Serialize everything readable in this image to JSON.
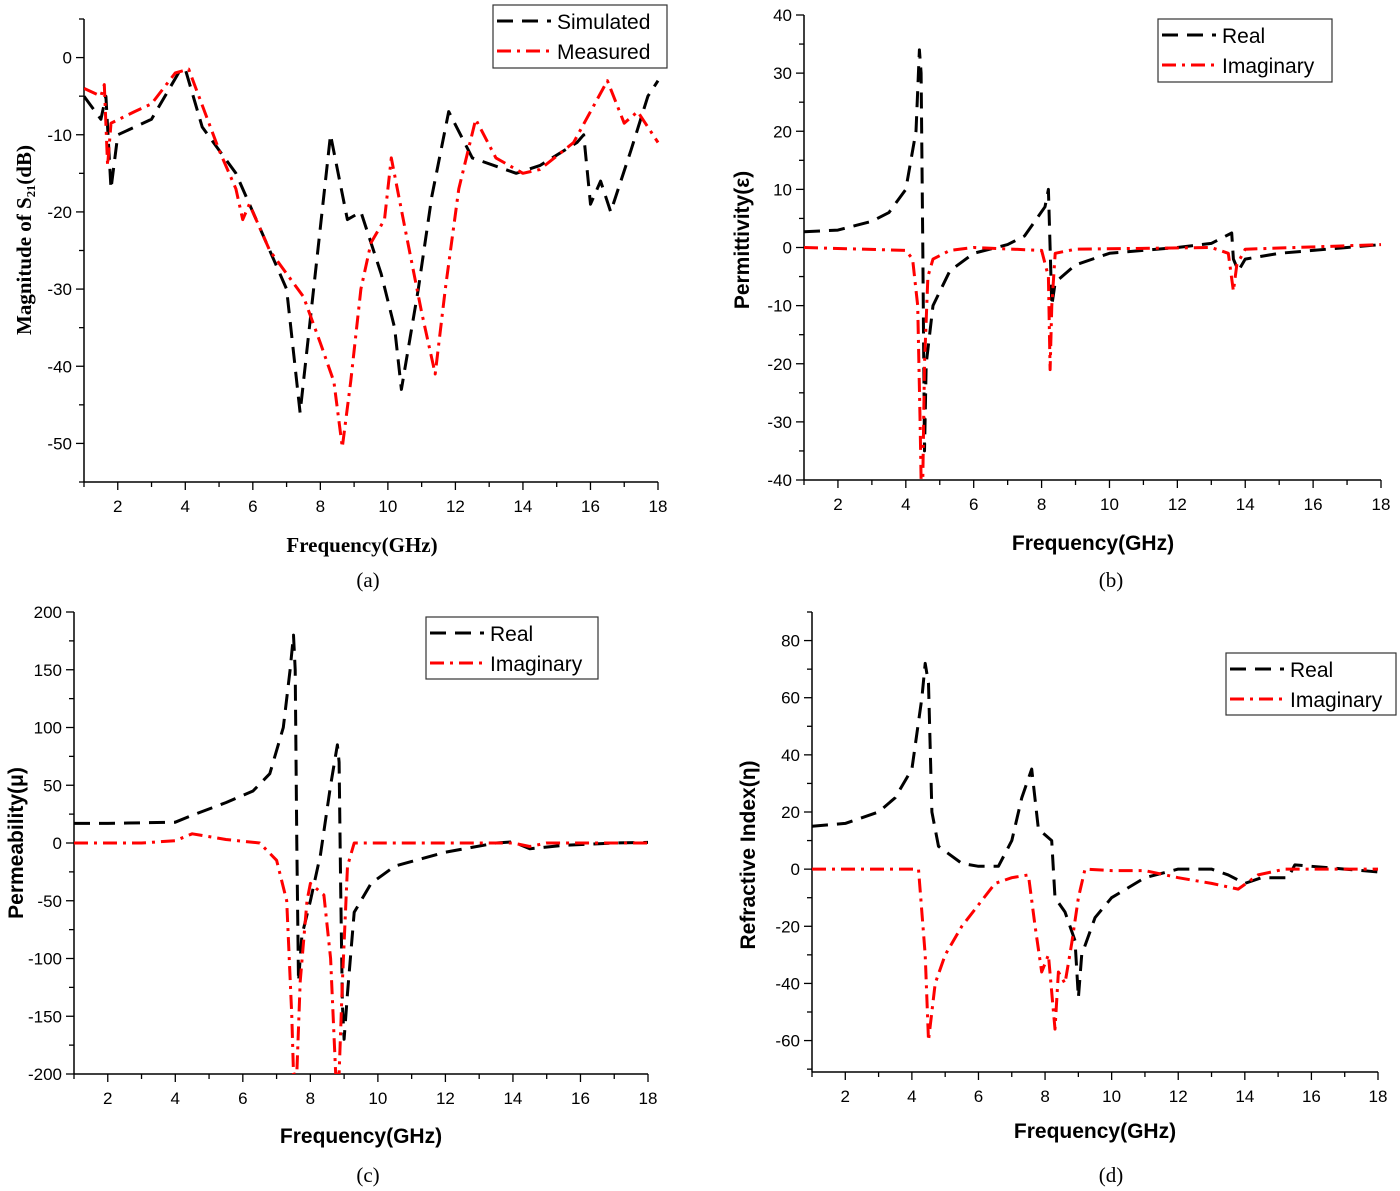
{
  "colors": {
    "series1": "#000000",
    "series2": "#ff0000"
  },
  "chart_data": [
    {
      "type": "line",
      "caption": "(a)",
      "xlabel": "Frequency(GHz)",
      "ylabel": "Magnitude of S₂₁(dB)",
      "xlim": [
        1,
        18
      ],
      "ylim": [
        -55,
        5
      ],
      "xticks": [
        2,
        4,
        6,
        8,
        10,
        12,
        14,
        16,
        18
      ],
      "yticks": [
        0,
        -10,
        -20,
        -30,
        -40,
        -50
      ],
      "grid": false,
      "legend": "top-right",
      "series": [
        {
          "name": "Simulated",
          "style": "dashed",
          "color": "#000000",
          "x": [
            1,
            1.5,
            1.65,
            1.8,
            2,
            3,
            3.8,
            4,
            4.5,
            5.5,
            6.2,
            7,
            7.4,
            7.8,
            8.3,
            8.8,
            9.2,
            9.8,
            10.2,
            10.4,
            10.9,
            11.3,
            11.8,
            12.5,
            13.8,
            14.5,
            15.6,
            15.8,
            16,
            16.3,
            16.6,
            17.2,
            17.7,
            18
          ],
          "y": [
            -5,
            -8,
            -5,
            -17,
            -10,
            -8,
            -2,
            -1.5,
            -9,
            -15,
            -22,
            -30,
            -46,
            -30,
            -10,
            -21,
            -20,
            -28,
            -35,
            -43,
            -30,
            -18,
            -7,
            -13,
            -15,
            -14,
            -11,
            -10,
            -19,
            -16,
            -20,
            -12,
            -5,
            -3
          ]
        },
        {
          "name": "Measured",
          "style": "dashdot",
          "color": "#ff0000",
          "x": [
            1,
            1.5,
            1.6,
            1.7,
            1.8,
            2.5,
            3,
            3.7,
            4.1,
            5,
            5.5,
            5.7,
            5.9,
            6.5,
            7.5,
            8,
            8.4,
            8.65,
            8.9,
            9.2,
            9.5,
            9.9,
            10.1,
            10.5,
            11,
            11.4,
            11.7,
            12.1,
            12.6,
            13.2,
            14,
            14.5,
            15.5,
            16.5,
            17,
            17.4,
            18
          ],
          "y": [
            -4,
            -5,
            -3.5,
            -14,
            -8.5,
            -7,
            -6,
            -2,
            -1.5,
            -12,
            -17,
            -21,
            -19,
            -25,
            -31,
            -37,
            -42,
            -50.5,
            -42,
            -30,
            -24,
            -21,
            -13,
            -22,
            -33,
            -41,
            -30,
            -17,
            -8,
            -13,
            -15,
            -14.5,
            -11,
            -3,
            -8.5,
            -7,
            -11
          ]
        }
      ]
    },
    {
      "type": "line",
      "caption": "(b)",
      "xlabel": "Frequency(GHz)",
      "ylabel": "Permittivity(ε)",
      "xlim": [
        1,
        18
      ],
      "ylim": [
        -40,
        40
      ],
      "xticks": [
        2,
        4,
        6,
        8,
        10,
        12,
        14,
        16,
        18
      ],
      "yticks": [
        40,
        30,
        20,
        10,
        0,
        -10,
        -20,
        -30,
        -40
      ],
      "grid": false,
      "legend": "top-right",
      "series": [
        {
          "name": "Real",
          "style": "dashed",
          "color": "#000000",
          "x": [
            1,
            2,
            3,
            3.5,
            4,
            4.3,
            4.4,
            4.45,
            4.5,
            4.55,
            4.6,
            4.8,
            5.3,
            6,
            7,
            7.5,
            8.1,
            8.2,
            8.3,
            8.4,
            9,
            10,
            11,
            12,
            13,
            13.6,
            13.65,
            13.8,
            14,
            15,
            16,
            17,
            18
          ],
          "y": [
            2.7,
            3,
            4.5,
            6,
            10,
            20,
            34,
            30,
            0,
            -35,
            -20,
            -10,
            -4,
            -1,
            0.5,
            2,
            7,
            10,
            -10,
            -6,
            -3,
            -1,
            -0.5,
            0,
            0.7,
            2.5,
            -2,
            -4,
            -2,
            -1,
            -0.5,
            0,
            0.5
          ]
        },
        {
          "name": "Imaginary",
          "style": "dashdot",
          "color": "#ff0000",
          "x": [
            1,
            4,
            4.2,
            4.35,
            4.42,
            4.45,
            4.5,
            4.55,
            4.65,
            4.8,
            5.3,
            6,
            8,
            8.2,
            8.25,
            8.3,
            8.4,
            9,
            13,
            13.5,
            13.65,
            13.75,
            14,
            18
          ],
          "y": [
            0,
            -0.5,
            -2,
            -10,
            -30,
            -40,
            -40,
            -20,
            -5,
            -2,
            -0.5,
            0,
            -0.5,
            -5,
            -21,
            -10,
            -1,
            -0.3,
            0,
            -1,
            -7.5,
            -3,
            -0.3,
            0.5
          ]
        }
      ]
    },
    {
      "type": "line",
      "caption": "(c)",
      "xlabel": "Frequency(GHz)",
      "ylabel": "Permeability(μ)",
      "xlim": [
        1,
        18
      ],
      "ylim": [
        -200,
        200
      ],
      "xticks": [
        2,
        4,
        6,
        8,
        10,
        12,
        14,
        16,
        18
      ],
      "yticks": [
        200,
        150,
        100,
        50,
        0,
        -50,
        -100,
        -150,
        -200
      ],
      "grid": false,
      "legend": "top-right",
      "series": [
        {
          "name": "Real",
          "style": "dashed",
          "color": "#000000",
          "x": [
            1,
            2,
            3,
            4,
            4.5,
            5.5,
            6.3,
            6.8,
            7.2,
            7.4,
            7.5,
            7.55,
            7.6,
            7.65,
            7.75,
            8,
            8.3,
            8.6,
            8.8,
            8.85,
            8.9,
            8.95,
            9,
            9.1,
            9.3,
            9.8,
            10.5,
            12,
            13.5,
            14,
            14.5,
            15.5,
            17,
            18
          ],
          "y": [
            17,
            17,
            17.5,
            18,
            24,
            35,
            45,
            60,
            100,
            150,
            180,
            150,
            0,
            -120,
            -80,
            -50,
            -10,
            50,
            85,
            70,
            -40,
            -140,
            -170,
            -130,
            -60,
            -35,
            -20,
            -8,
            0,
            1,
            -5,
            -2,
            0,
            0.5
          ]
        },
        {
          "name": "Imaginary",
          "style": "dashdot",
          "color": "#ff0000",
          "x": [
            1,
            3,
            4,
            4.5,
            5.5,
            6.5,
            7,
            7.3,
            7.45,
            7.5,
            7.6,
            7.7,
            7.9,
            8,
            8.4,
            8.6,
            8.75,
            8.85,
            8.95,
            9.1,
            9.3,
            14,
            14.5,
            15,
            18
          ],
          "y": [
            0,
            0,
            2,
            8,
            3,
            0,
            -15,
            -50,
            -150,
            -200,
            -200,
            -120,
            -50,
            -35,
            -45,
            -100,
            -200,
            -200,
            -120,
            -20,
            0,
            0,
            -3,
            0,
            0
          ]
        }
      ]
    },
    {
      "type": "line",
      "caption": "(d)",
      "xlabel": "Frequency(GHz)",
      "ylabel": "Refractive Index(η)",
      "xlim": [
        1,
        18
      ],
      "ylim": [
        -71,
        90
      ],
      "xticks": [
        2,
        4,
        6,
        8,
        10,
        12,
        14,
        16,
        18
      ],
      "yticks": [
        80,
        60,
        40,
        20,
        0,
        -20,
        -40,
        -60
      ],
      "grid": false,
      "legend": "top-right",
      "series": [
        {
          "name": "Real",
          "style": "dashed",
          "color": "#000000",
          "x": [
            1,
            2,
            3,
            3.5,
            4,
            4.3,
            4.4,
            4.5,
            4.6,
            4.8,
            5.5,
            6,
            6.6,
            7,
            7.3,
            7.6,
            7.8,
            8,
            8.2,
            8.3,
            8.6,
            8.9,
            9,
            9.1,
            9.5,
            10,
            11,
            12,
            13,
            13.5,
            14,
            14.5,
            15.3,
            15.5,
            16,
            17,
            18
          ],
          "y": [
            15,
            16,
            20,
            25,
            35,
            60,
            72,
            65,
            20,
            8,
            2,
            1,
            1,
            10,
            25,
            35,
            14,
            12,
            10,
            -10,
            -15,
            -25,
            -45,
            -30,
            -17,
            -10,
            -3,
            0,
            0,
            -2,
            -5,
            -3,
            -3,
            1.5,
            1,
            0,
            -1
          ]
        },
        {
          "name": "Imaginary",
          "style": "dashdot",
          "color": "#ff0000",
          "x": [
            1,
            4.2,
            4.4,
            4.5,
            4.7,
            5,
            5.5,
            6.5,
            7,
            7.5,
            7.7,
            7.9,
            8.1,
            8.3,
            8.4,
            8.6,
            8.8,
            9,
            9.2,
            10,
            11,
            12,
            13,
            13.8,
            14.4,
            15.2,
            16,
            18
          ],
          "y": [
            0,
            0,
            -30,
            -60,
            -40,
            -30,
            -20,
            -5,
            -3,
            -2,
            -20,
            -36,
            -30,
            -56,
            -36,
            -40,
            -26,
            -10,
            0,
            -0.5,
            -0.5,
            -3,
            -5,
            -7,
            -2,
            0,
            0,
            0
          ]
        }
      ]
    }
  ]
}
